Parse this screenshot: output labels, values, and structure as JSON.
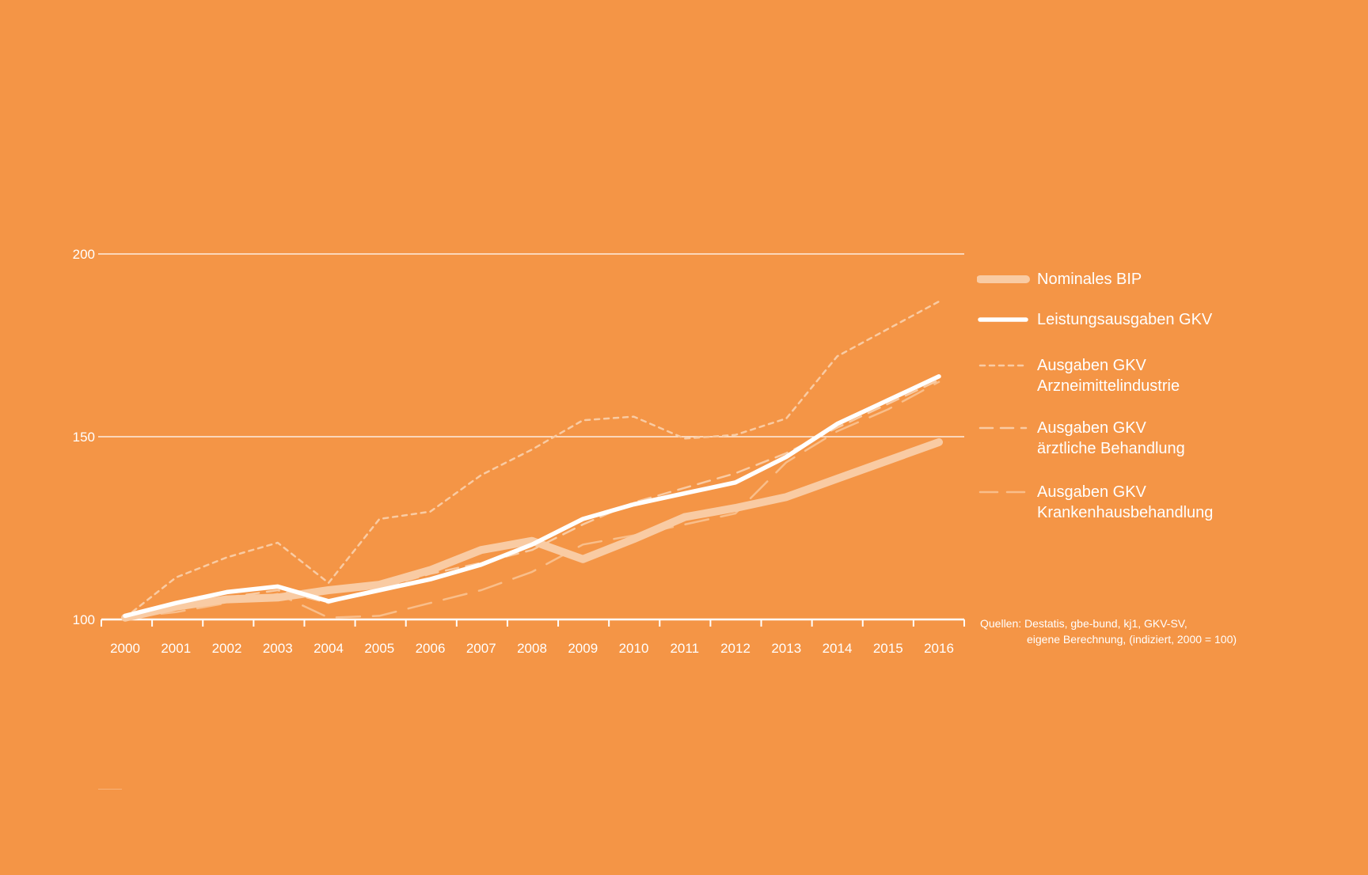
{
  "chart_data": {
    "type": "line",
    "title": "",
    "xlabel": "",
    "ylabel": "",
    "x": [
      "2000",
      "2001",
      "2002",
      "2003",
      "2004",
      "2005",
      "2006",
      "2007",
      "2008",
      "2009",
      "2010",
      "2011",
      "2012",
      "2013",
      "2014",
      "2015",
      "2016"
    ],
    "ylim": [
      100,
      200
    ],
    "yticks": [
      "100",
      "150",
      "200"
    ],
    "grid": true,
    "legend_position": "right",
    "series": [
      {
        "name": "Nominales BIP",
        "style": "thick-light",
        "color": "#F9CBA3",
        "values": [
          100.5,
          103.5,
          105.5,
          106,
          108,
          109.5,
          113.5,
          119,
          121.5,
          116.5,
          122,
          128,
          130.5,
          133.5,
          138.5,
          143.5,
          148.5
        ]
      },
      {
        "name": "Leistungsausgaben GKV",
        "style": "solid",
        "color": "#FFFFFF",
        "values": [
          101,
          104.5,
          107.5,
          109,
          105,
          108,
          111,
          115,
          120.5,
          127.5,
          131.5,
          134.5,
          137.5,
          144.5,
          153.5,
          160,
          166.5
        ]
      },
      {
        "name": "Ausgaben GKV Arzneimittelindustrie",
        "name_lines": [
          "Ausgaben GKV",
          "Arzneimittelindustrie"
        ],
        "style": "dotted",
        "color": "#F9CBA3",
        "values": [
          100.5,
          111.5,
          117,
          121,
          110,
          127.5,
          129.5,
          139.5,
          146.5,
          154.5,
          155.5,
          149.5,
          150.5,
          155,
          172,
          179.5,
          187
        ]
      },
      {
        "name": "Ausgaben GKV ärztliche Behandlung",
        "name_lines": [
          "Ausgaben GKV",
          "ärztliche Behandlung"
        ],
        "style": "dashed",
        "color": "#F9CBA3",
        "values": [
          100.5,
          103.5,
          106,
          108,
          104.5,
          108.5,
          112.5,
          115.5,
          119,
          126,
          132,
          136,
          140,
          145.5,
          152.5,
          159,
          165.5
        ]
      },
      {
        "name": "Ausgaben GKV Krankenhausbehandlung",
        "name_lines": [
          "Ausgaben GKV",
          "Krankenhausbehandlung"
        ],
        "style": "long-dashed",
        "color": "#F9BE8A",
        "values": [
          100.5,
          102,
          104.5,
          107,
          100.5,
          101,
          104.5,
          108,
          113,
          120.5,
          123,
          126,
          129,
          143,
          151.5,
          157.5,
          165
        ]
      }
    ],
    "source": {
      "prefix": "Quellen:",
      "line1": "Destatis, gbe-bund, kj1, GKV-SV,",
      "line2": "eigene Berechnung, (indiziert, 2000 = 100)"
    }
  }
}
